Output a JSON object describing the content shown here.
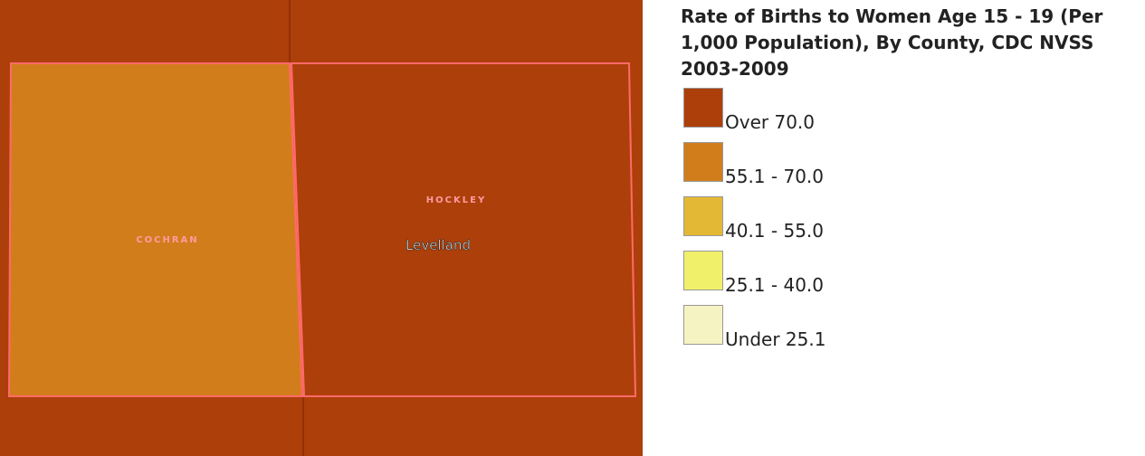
{
  "map": {
    "labels": [
      "COCHRAN",
      "HOCKLEY",
      "Levelland"
    ]
  },
  "legend": {
    "title": "Rate of Births to Women Age 15 - 19 (Per 1,000 Population), By County, CDC NVSS 2003-2009",
    "items": [
      {
        "label": "Over 70.0",
        "color": "#ad3f0a"
      },
      {
        "label": "55.1 - 70.0",
        "color": "#d27d1c"
      },
      {
        "label": "40.1 - 55.0",
        "color": "#e3b834"
      },
      {
        "label": "25.1 - 40.0",
        "color": "#f0f06a"
      },
      {
        "label": "Under 25.1",
        "color": "#f6f3c2"
      }
    ]
  }
}
